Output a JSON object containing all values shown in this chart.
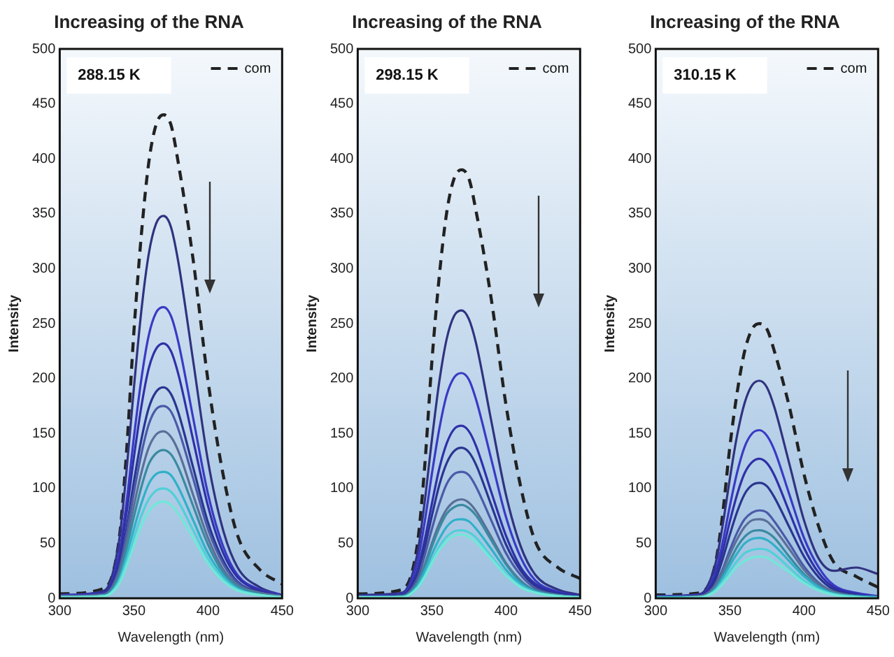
{
  "chart_data": [
    {
      "type": "line",
      "title": "Increasing of the RNA",
      "xlabel": "Wavelength (nm)",
      "ylabel": "Intensity",
      "annotations": [
        "288.15 K"
      ],
      "xlim": [
        300,
        450
      ],
      "xticks": [
        300,
        350,
        400,
        450
      ],
      "ylim": [
        0,
        500
      ],
      "yticks": [
        0,
        50,
        100,
        150,
        200,
        250,
        300,
        350,
        400,
        450,
        500
      ],
      "legend": "top right",
      "marker": "none",
      "x": [
        300,
        330,
        340,
        345,
        350,
        355,
        360,
        365,
        370,
        375,
        380,
        390,
        400,
        410,
        420,
        435,
        450
      ],
      "series": [
        {
          "name": "com",
          "color": "#222222",
          "line_style": "dashed",
          "values": [
            4,
            9,
            53,
            132,
            242,
            330,
            396,
            431,
            440,
            431,
            396,
            308,
            198,
            114,
            57,
            26,
            13
          ]
        },
        {
          "color": "#30337f",
          "values": [
            3,
            7,
            52,
            115,
            191,
            261,
            313,
            341,
            348,
            338,
            306,
            216,
            125,
            63,
            28,
            10,
            3
          ]
        },
        {
          "color": "#3a3ac4",
          "values": [
            3,
            5,
            40,
            87,
            146,
            199,
            239,
            260,
            265,
            257,
            233,
            164,
            95,
            48,
            21,
            8,
            3
          ]
        },
        {
          "color": "#3030a8",
          "values": [
            2,
            5,
            35,
            77,
            128,
            174,
            209,
            227,
            232,
            225,
            204,
            144,
            84,
            42,
            19,
            7,
            2
          ]
        },
        {
          "color": "#2a3590",
          "values": [
            2,
            4,
            29,
            63,
            106,
            144,
            173,
            188,
            192,
            186,
            169,
            119,
            69,
            35,
            15,
            6,
            2
          ]
        },
        {
          "color": "#4a5aa8",
          "values": [
            2,
            4,
            26,
            58,
            96,
            131,
            158,
            172,
            175,
            170,
            154,
            109,
            63,
            32,
            14,
            5,
            2
          ]
        },
        {
          "color": "#5a6f98",
          "values": [
            2,
            3,
            23,
            50,
            84,
            114,
            137,
            149,
            152,
            147,
            134,
            94,
            55,
            27,
            12,
            5,
            2
          ]
        },
        {
          "color": "#3a8aa0",
          "values": [
            1,
            3,
            20,
            45,
            74,
            101,
            122,
            132,
            135,
            131,
            119,
            84,
            49,
            24,
            11,
            4,
            1
          ]
        },
        {
          "color": "#30b0c8",
          "values": [
            1,
            2,
            17,
            38,
            63,
            86,
            104,
            113,
            115,
            112,
            101,
            71,
            41,
            21,
            9,
            3,
            1
          ]
        },
        {
          "color": "#50d0d8",
          "values": [
            1,
            2,
            15,
            33,
            55,
            75,
            90,
            98,
            100,
            97,
            88,
            62,
            36,
            18,
            8,
            3,
            1
          ]
        },
        {
          "color": "#70e8d8",
          "values": [
            1,
            2,
            13,
            29,
            48,
            66,
            79,
            86,
            88,
            85,
            77,
            55,
            32,
            16,
            7,
            3,
            1
          ]
        }
      ]
    },
    {
      "type": "line",
      "title": "Increasing of the RNA",
      "xlabel": "Wavelength (nm)",
      "ylabel": "Intensity",
      "annotations": [
        "298.15 K"
      ],
      "xlim": [
        300,
        450
      ],
      "xticks": [
        300,
        350,
        400,
        450
      ],
      "ylim": [
        0,
        500
      ],
      "yticks": [
        0,
        50,
        100,
        150,
        200,
        250,
        300,
        350,
        400,
        450,
        500
      ],
      "legend": "top right",
      "marker": "none",
      "x": [
        300,
        330,
        340,
        345,
        350,
        355,
        360,
        365,
        370,
        375,
        380,
        390,
        400,
        410,
        420,
        435,
        450
      ],
      "series": [
        {
          "name": "com",
          "color": "#222222",
          "line_style": "dashed",
          "values": [
            4,
            8,
            47,
            117,
            215,
            293,
            351,
            382,
            390,
            382,
            351,
            273,
            176,
            101,
            51,
            28,
            18
          ]
        },
        {
          "color": "#30337f",
          "values": [
            3,
            5,
            39,
            86,
            144,
            197,
            236,
            257,
            262,
            254,
            231,
            162,
            94,
            47,
            21,
            8,
            3
          ]
        },
        {
          "color": "#3a3ac4",
          "values": [
            2,
            4,
            31,
            68,
            113,
            154,
            185,
            201,
            205,
            199,
            180,
            127,
            74,
            37,
            16,
            6,
            2
          ]
        },
        {
          "color": "#3030a8",
          "values": [
            2,
            3,
            24,
            52,
            86,
            118,
            141,
            154,
            157,
            152,
            138,
            97,
            57,
            28,
            13,
            5,
            2
          ]
        },
        {
          "color": "#2a3590",
          "values": [
            1,
            3,
            21,
            45,
            75,
            103,
            123,
            134,
            137,
            133,
            121,
            85,
            49,
            25,
            11,
            4,
            1
          ]
        },
        {
          "color": "#4a5aa8",
          "values": [
            1,
            2,
            17,
            38,
            63,
            86,
            104,
            113,
            115,
            112,
            101,
            71,
            41,
            21,
            9,
            3,
            1
          ]
        },
        {
          "color": "#5a6f98",
          "values": [
            1,
            2,
            14,
            30,
            50,
            68,
            81,
            88,
            90,
            87,
            79,
            56,
            32,
            16,
            7,
            3,
            1
          ]
        },
        {
          "color": "#3a8aa0",
          "values": [
            1,
            2,
            13,
            28,
            47,
            64,
            77,
            83,
            85,
            82,
            75,
            53,
            31,
            15,
            7,
            3,
            1
          ]
        },
        {
          "color": "#30b0c8",
          "values": [
            1,
            1,
            11,
            24,
            40,
            54,
            65,
            71,
            72,
            70,
            63,
            45,
            26,
            13,
            6,
            2,
            1
          ]
        },
        {
          "color": "#50d0d8",
          "values": [
            1,
            1,
            9,
            20,
            34,
            47,
            56,
            61,
            62,
            60,
            55,
            38,
            22,
            11,
            5,
            2,
            1
          ]
        },
        {
          "color": "#70e8d8",
          "values": [
            1,
            1,
            9,
            19,
            32,
            44,
            52,
            57,
            58,
            56,
            51,
            36,
            21,
            10,
            5,
            2,
            1
          ]
        }
      ]
    },
    {
      "type": "line",
      "title": "Increasing of the RNA",
      "xlabel": "Wavelength (nm)",
      "ylabel": "Intensity",
      "annotations": [
        "310.15 K"
      ],
      "xlim": [
        300,
        450
      ],
      "xticks": [
        300,
        350,
        400,
        450
      ],
      "ylim": [
        0,
        500
      ],
      "yticks": [
        0,
        50,
        100,
        150,
        200,
        250,
        300,
        350,
        400,
        450,
        500
      ],
      "legend": "top right",
      "marker": "none",
      "x": [
        300,
        330,
        340,
        345,
        350,
        355,
        360,
        365,
        370,
        375,
        380,
        390,
        400,
        410,
        420,
        435,
        450
      ],
      "series": [
        {
          "name": "com",
          "color": "#222222",
          "line_style": "dashed",
          "values": [
            3,
            5,
            30,
            75,
            138,
            188,
            225,
            245,
            250,
            245,
            225,
            175,
            113,
            65,
            33,
            20,
            10
          ]
        },
        {
          "color": "#30337f",
          "values": [
            2,
            4,
            30,
            65,
            109,
            149,
            178,
            194,
            198,
            192,
            174,
            123,
            71,
            36,
            25,
            28,
            22
          ]
        },
        {
          "color": "#3a3ac4",
          "values": [
            2,
            3,
            23,
            50,
            84,
            115,
            138,
            150,
            153,
            148,
            135,
            95,
            55,
            28,
            12,
            5,
            2
          ]
        },
        {
          "color": "#3030a8",
          "values": [
            1,
            3,
            19,
            42,
            70,
            95,
            114,
            124,
            127,
            123,
            112,
            79,
            46,
            23,
            10,
            4,
            1
          ]
        },
        {
          "color": "#2a3590",
          "values": [
            1,
            2,
            16,
            35,
            58,
            79,
            95,
            103,
            105,
            102,
            92,
            65,
            38,
            19,
            8,
            3,
            1
          ]
        },
        {
          "color": "#4a5aa8",
          "values": [
            1,
            2,
            12,
            26,
            44,
            60,
            72,
            78,
            80,
            78,
            70,
            50,
            29,
            14,
            6,
            2,
            1
          ]
        },
        {
          "color": "#5a6f98",
          "values": [
            1,
            2,
            11,
            24,
            40,
            54,
            65,
            71,
            72,
            70,
            63,
            45,
            26,
            13,
            6,
            2,
            1
          ]
        },
        {
          "color": "#3a8aa0",
          "values": [
            1,
            1,
            9,
            20,
            34,
            47,
            56,
            61,
            62,
            60,
            55,
            38,
            22,
            11,
            5,
            2,
            1
          ]
        },
        {
          "color": "#30b0c8",
          "values": [
            1,
            1,
            8,
            18,
            30,
            41,
            50,
            54,
            55,
            53,
            48,
            34,
            20,
            10,
            4,
            2,
            1
          ]
        },
        {
          "color": "#50d0d8",
          "values": [
            0,
            1,
            7,
            15,
            25,
            34,
            41,
            44,
            45,
            44,
            40,
            28,
            16,
            8,
            4,
            1,
            0
          ]
        },
        {
          "color": "#70e8d8",
          "values": [
            0,
            1,
            6,
            13,
            21,
            29,
            34,
            37,
            38,
            37,
            33,
            24,
            14,
            7,
            3,
            1,
            0
          ]
        }
      ]
    }
  ]
}
